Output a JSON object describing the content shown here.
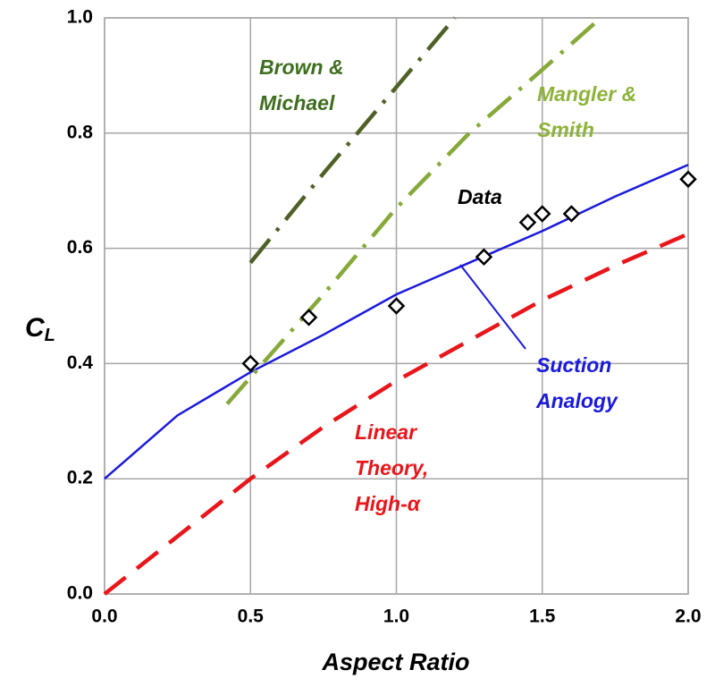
{
  "chart_data": {
    "type": "line",
    "x_label": "Aspect Ratio",
    "y_label": "C",
    "y_label_sub": "L",
    "xlim": [
      0,
      2.0
    ],
    "ylim": [
      0,
      1.0
    ],
    "xticks": [
      {
        "value": 0,
        "label": "0.0"
      },
      {
        "value": 0.5,
        "label": "0.5"
      },
      {
        "value": 1,
        "label": "1.0"
      },
      {
        "value": 1.5,
        "label": "1.5"
      },
      {
        "value": 2,
        "label": "2.0"
      }
    ],
    "yticks": [
      {
        "value": 0,
        "label": "0.0"
      },
      {
        "value": 0.2,
        "label": "0.2"
      },
      {
        "value": 0.4,
        "label": "0.4"
      },
      {
        "value": 0.6,
        "label": "0.6"
      },
      {
        "value": 0.8,
        "label": "0.8"
      },
      {
        "value": 1,
        "label": "1.0"
      }
    ],
    "grid": true,
    "series": [
      {
        "label": [
          "Linear",
          "Theory,",
          "High-α"
        ],
        "color": "#e8161b",
        "style": "dashed",
        "x": [
          0,
          0.25,
          0.5,
          0.75,
          1.0,
          1.25,
          1.5,
          1.75,
          2.0
        ],
        "values": [
          0,
          0.1,
          0.2,
          0.29,
          0.37,
          0.44,
          0.51,
          0.57,
          0.625
        ]
      },
      {
        "label": [
          "Suction",
          "Analogy"
        ],
        "color": "#1a1adb",
        "style": "solid",
        "x": [
          0,
          0.25,
          0.5,
          0.75,
          1.0,
          1.25,
          1.5,
          1.75,
          2.0
        ],
        "values": [
          0.2,
          0.31,
          0.385,
          0.45,
          0.52,
          0.575,
          0.63,
          0.69,
          0.745
        ]
      },
      {
        "label": [
          "Brown &",
          "Michael"
        ],
        "color": "#4f6027",
        "style": "dashdot",
        "x": [
          0.5,
          0.75,
          1.0,
          1.2
        ],
        "values": [
          0.575,
          0.73,
          0.88,
          1.0
        ]
      },
      {
        "label": [
          "Mangler &",
          "Smith"
        ],
        "color": "#86a93a",
        "style": "dashdot",
        "x": [
          0.42,
          0.75,
          1.0,
          1.25,
          1.5,
          1.7
        ],
        "values": [
          0.33,
          0.52,
          0.67,
          0.8,
          0.91,
          1.0
        ]
      },
      {
        "label": [
          "Data"
        ],
        "color": "#000000",
        "style": "markers",
        "x": [
          0.5,
          0.7,
          1.0,
          1.3,
          1.45,
          1.5,
          1.6,
          2.0
        ],
        "values": [
          0.4,
          0.48,
          0.5,
          0.585,
          0.645,
          0.66,
          0.66,
          0.72
        ]
      }
    ]
  }
}
